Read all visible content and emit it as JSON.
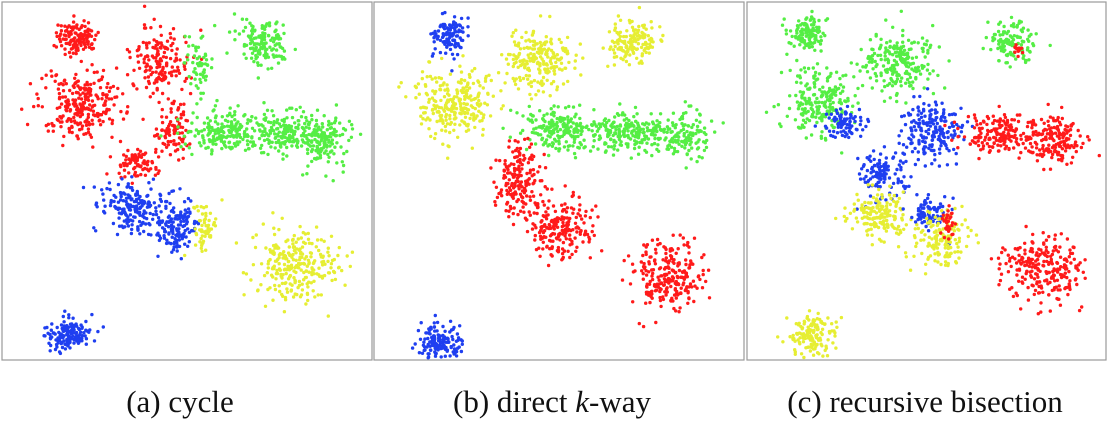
{
  "figure": {
    "captions": [
      {
        "parts": [
          "(a) cycle"
        ]
      },
      {
        "parts": [
          "(b) direct ",
          "k",
          "-way"
        ]
      },
      {
        "parts": [
          "(c) recursive bisection"
        ]
      }
    ]
  }
}
